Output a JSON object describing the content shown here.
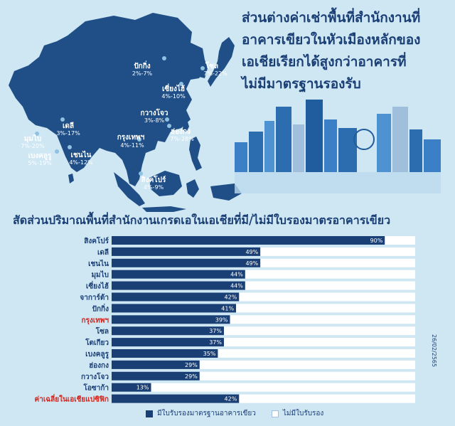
{
  "headline": {
    "line1": "ส่วนต่างค่าเช่าพื้นที่สำนักงานที่",
    "line2": "อาคารเขียวในหัวเมืองหลักของ",
    "line3": "เอเชียเรียกได้สูงกว่าอาคารที่",
    "line4": "ไม่มีมาตรฐานรองรับ"
  },
  "map_labels": [
    {
      "city": "ปักกิ่ง",
      "range": "2%-7%"
    },
    {
      "city": "โซล",
      "range": "7%-22%"
    },
    {
      "city": "เซี่ยงไฮ้",
      "range": "4%-10%"
    },
    {
      "city": "เดลี",
      "range": "3%-17%"
    },
    {
      "city": "กวางโจว",
      "range": "3%-8%"
    },
    {
      "city": "ฮ่องกง",
      "range": "7%-28%"
    },
    {
      "city": "กรุงเทพฯ",
      "range": "4%-11%"
    },
    {
      "city": "มุมไบ",
      "range": "7%-20%"
    },
    {
      "city": "เบงคลูรู",
      "range": "5%-19%"
    },
    {
      "city": "เชนไน",
      "range": "4%-12%"
    },
    {
      "city": "สิงคโปร์",
      "range": "4%-9%"
    }
  ],
  "side_note": "26/02/2565",
  "colors": {
    "background": "#cfe6f3",
    "certified": "#1a3f75",
    "uncertified": "#ffffff",
    "highlight_label": "#d6221a"
  },
  "chart_data": {
    "type": "bar",
    "orientation": "horizontal",
    "stacked": true,
    "title": "สัดส่วนปริมาณพื้นที่สำนักงานเกรดเอในเอเชียที่มี/ไม่มีใบรองมาตรอาคารเขียว",
    "categories": [
      "สิงคโปร์",
      "เดลี",
      "เชนไน",
      "มุมไบ",
      "เซี่ยงไฮ้",
      "จาการ์ต้า",
      "ปักกิ่ง",
      "กรุงเทพฯ",
      "โซล",
      "โตเกียว",
      "เบงคลูรู",
      "ฮ่องกง",
      "กวางโจว",
      "โอซาก้า",
      "ค่าเฉลี่ยในเอเชียแปซิฟิก"
    ],
    "highlighted_categories": [
      "กรุงเทพฯ",
      "ค่าเฉลี่ยในเอเชียแปซิฟิก"
    ],
    "series": [
      {
        "name": "มีใบรับรองมาตรฐานอาคารเขียว",
        "values": [
          90,
          49,
          49,
          44,
          44,
          42,
          41,
          39,
          37,
          37,
          35,
          29,
          29,
          13,
          42
        ]
      },
      {
        "name": "ไม่มีใบรับรอง",
        "values": [
          10,
          51,
          51,
          56,
          56,
          58,
          59,
          61,
          63,
          63,
          65,
          71,
          71,
          87,
          58
        ]
      }
    ],
    "data_labels": [
      "90%",
      "49%",
      "49%",
      "44%",
      "44%",
      "42%",
      "41%",
      "39%",
      "37%",
      "37%",
      "35%",
      "29%",
      "29%",
      "13%",
      "42%"
    ],
    "xlim": [
      0,
      100
    ],
    "legend": "bottom"
  }
}
